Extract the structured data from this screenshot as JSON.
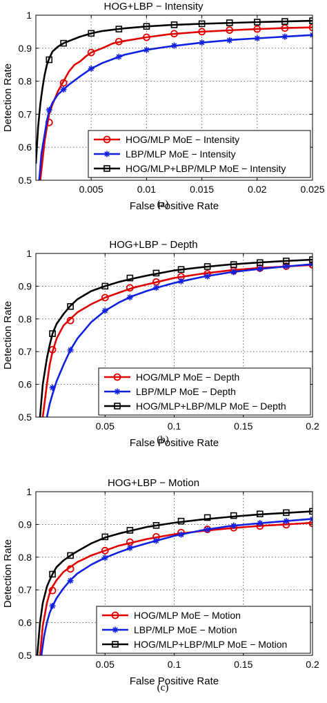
{
  "chart_data": [
    {
      "type": "line",
      "caption": "(a)",
      "title": "HOG+LBP − Intensity",
      "xlabel": "False Positive Rate",
      "ylabel": "Detection Rate",
      "xlim": [
        0,
        0.025
      ],
      "ylim": [
        0.5,
        1
      ],
      "xticks": [
        0,
        0.005,
        0.01,
        0.015,
        0.02,
        0.025
      ],
      "xtick_labels": [
        "",
        "0.005",
        "0.01",
        "0.015",
        "0.02",
        "0.025"
      ],
      "yticks": [
        0.5,
        0.6,
        0.7,
        0.8,
        0.9,
        1
      ],
      "ytick_labels": [
        "0.5",
        "0.6",
        "0.7",
        "0.8",
        "0.9",
        "1"
      ],
      "grid": true,
      "legend_position": "bottom-right",
      "series": [
        {
          "name": "HOG/MLP MoE − Intensity",
          "color": "#e00000",
          "marker": "circle",
          "x": [
            0.0004,
            0.0006,
            0.0008,
            0.001,
            0.0012,
            0.0015,
            0.002,
            0.0025,
            0.003,
            0.0035,
            0.004,
            0.0045,
            0.005,
            0.006,
            0.007,
            0.008,
            0.01,
            0.012,
            0.015,
            0.018,
            0.02,
            0.0225,
            0.025
          ],
          "y": [
            0.5,
            0.56,
            0.62,
            0.66,
            0.7,
            0.73,
            0.77,
            0.8,
            0.83,
            0.85,
            0.86,
            0.875,
            0.887,
            0.9,
            0.915,
            0.922,
            0.933,
            0.942,
            0.95,
            0.955,
            0.958,
            0.961,
            0.963
          ],
          "markers_x": [
            0.0012,
            0.0025,
            0.005,
            0.0075,
            0.01,
            0.0125,
            0.015,
            0.0175,
            0.02,
            0.0225,
            0.025
          ],
          "markers_y": [
            0.675,
            0.795,
            0.887,
            0.92,
            0.933,
            0.944,
            0.95,
            0.955,
            0.958,
            0.961,
            0.963
          ]
        },
        {
          "name": "LBP/MLP MoE − Intensity",
          "color": "#1020e0",
          "marker": "star",
          "x": [
            0.0003,
            0.0005,
            0.0008,
            0.001,
            0.0012,
            0.0015,
            0.002,
            0.0025,
            0.003,
            0.004,
            0.005,
            0.006,
            0.008,
            0.01,
            0.012,
            0.015,
            0.018,
            0.02,
            0.0225,
            0.025
          ],
          "y": [
            0.5,
            0.58,
            0.64,
            0.68,
            0.71,
            0.735,
            0.76,
            0.775,
            0.79,
            0.815,
            0.838,
            0.855,
            0.88,
            0.895,
            0.905,
            0.917,
            0.926,
            0.93,
            0.935,
            0.94
          ],
          "markers_x": [
            0.0012,
            0.0025,
            0.005,
            0.0075,
            0.01,
            0.0125,
            0.015,
            0.0175,
            0.02,
            0.0225,
            0.025
          ],
          "markers_y": [
            0.713,
            0.775,
            0.838,
            0.874,
            0.895,
            0.908,
            0.917,
            0.924,
            0.93,
            0.935,
            0.94
          ]
        },
        {
          "name": "HOG/MLP+LBP/MLP MoE − Intensity",
          "color": "#000000",
          "marker": "square",
          "x": [
            0.0,
            0.0002,
            0.0004,
            0.0006,
            0.0008,
            0.001,
            0.0012,
            0.0015,
            0.002,
            0.0025,
            0.003,
            0.004,
            0.005,
            0.006,
            0.008,
            0.01,
            0.012,
            0.015,
            0.018,
            0.02,
            0.0225,
            0.025
          ],
          "y": [
            0.55,
            0.66,
            0.73,
            0.78,
            0.82,
            0.85,
            0.868,
            0.89,
            0.905,
            0.915,
            0.922,
            0.935,
            0.945,
            0.952,
            0.96,
            0.966,
            0.97,
            0.974,
            0.977,
            0.979,
            0.981,
            0.983
          ],
          "markers_x": [
            0.0012,
            0.0025,
            0.005,
            0.0075,
            0.01,
            0.0125,
            0.015,
            0.0175,
            0.02,
            0.0225,
            0.025
          ],
          "markers_y": [
            0.865,
            0.915,
            0.945,
            0.958,
            0.966,
            0.971,
            0.974,
            0.977,
            0.979,
            0.981,
            0.983
          ]
        }
      ]
    },
    {
      "type": "line",
      "caption": "(b)",
      "title": "HOG+LBP − Depth",
      "xlabel": "False Positive Rate",
      "ylabel": "Detection Rate",
      "xlim": [
        0,
        0.2
      ],
      "ylim": [
        0.5,
        1
      ],
      "xticks": [
        0,
        0.05,
        0.1,
        0.15,
        0.2
      ],
      "xtick_labels": [
        "",
        "0.05",
        "0.1",
        "0.15",
        "0.2"
      ],
      "yticks": [
        0.5,
        0.6,
        0.7,
        0.8,
        0.9,
        1
      ],
      "ytick_labels": [
        "0.5",
        "0.6",
        "0.7",
        "0.8",
        "0.9",
        "1"
      ],
      "grid": true,
      "legend_position": "bottom-right",
      "series": [
        {
          "name": "HOG/MLP MoE − Depth",
          "color": "#e00000",
          "marker": "circle",
          "x": [
            0.005,
            0.008,
            0.01,
            0.012,
            0.015,
            0.02,
            0.025,
            0.03,
            0.04,
            0.05,
            0.06,
            0.07,
            0.08,
            0.09,
            0.1,
            0.12,
            0.14,
            0.16,
            0.18,
            0.2
          ],
          "y": [
            0.5,
            0.6,
            0.66,
            0.7,
            0.74,
            0.78,
            0.8,
            0.82,
            0.845,
            0.865,
            0.88,
            0.895,
            0.905,
            0.915,
            0.925,
            0.938,
            0.948,
            0.955,
            0.96,
            0.965
          ],
          "markers_x": [
            0.012,
            0.025,
            0.05,
            0.068,
            0.087,
            0.105,
            0.124,
            0.143,
            0.162,
            0.181,
            0.2
          ],
          "markers_y": [
            0.706,
            0.795,
            0.865,
            0.895,
            0.913,
            0.929,
            0.938,
            0.947,
            0.955,
            0.961,
            0.965
          ]
        },
        {
          "name": "LBP/MLP MoE − Depth",
          "color": "#1020e0",
          "marker": "star",
          "x": [
            0.008,
            0.01,
            0.012,
            0.015,
            0.02,
            0.025,
            0.03,
            0.04,
            0.05,
            0.06,
            0.07,
            0.08,
            0.09,
            0.1,
            0.12,
            0.14,
            0.16,
            0.18,
            0.2
          ],
          "y": [
            0.5,
            0.54,
            0.57,
            0.61,
            0.66,
            0.705,
            0.74,
            0.79,
            0.825,
            0.85,
            0.87,
            0.885,
            0.898,
            0.91,
            0.928,
            0.942,
            0.952,
            0.96,
            0.967
          ],
          "markers_x": [
            0.012,
            0.025,
            0.05,
            0.068,
            0.087,
            0.105,
            0.124,
            0.143,
            0.162,
            0.181,
            0.2
          ],
          "markers_y": [
            0.59,
            0.705,
            0.825,
            0.866,
            0.895,
            0.915,
            0.93,
            0.943,
            0.953,
            0.961,
            0.967
          ]
        },
        {
          "name": "HOG/MLP+LBP/MLP MoE − Depth",
          "color": "#000000",
          "marker": "square",
          "x": [
            0.003,
            0.005,
            0.008,
            0.01,
            0.012,
            0.015,
            0.02,
            0.025,
            0.03,
            0.04,
            0.05,
            0.06,
            0.07,
            0.08,
            0.1,
            0.12,
            0.14,
            0.16,
            0.18,
            0.2
          ],
          "y": [
            0.5,
            0.6,
            0.68,
            0.72,
            0.755,
            0.785,
            0.815,
            0.84,
            0.86,
            0.885,
            0.9,
            0.913,
            0.923,
            0.932,
            0.948,
            0.958,
            0.966,
            0.972,
            0.977,
            0.981
          ],
          "markers_x": [
            0.012,
            0.025,
            0.05,
            0.068,
            0.087,
            0.105,
            0.124,
            0.143,
            0.162,
            0.181,
            0.2
          ],
          "markers_y": [
            0.755,
            0.838,
            0.9,
            0.925,
            0.94,
            0.951,
            0.96,
            0.966,
            0.972,
            0.977,
            0.981
          ]
        }
      ]
    },
    {
      "type": "line",
      "caption": "(c)",
      "title": "HOG+LBP − Motion",
      "xlabel": "False Positive Rate",
      "ylabel": "Detection Rate",
      "xlim": [
        0,
        0.2
      ],
      "ylim": [
        0.5,
        1
      ],
      "xticks": [
        0,
        0.05,
        0.1,
        0.15,
        0.2
      ],
      "xtick_labels": [
        "",
        "0.05",
        "0.1",
        "0.15",
        "0.2"
      ],
      "yticks": [
        0.5,
        0.6,
        0.7,
        0.8,
        0.9,
        1
      ],
      "ytick_labels": [
        "0.5",
        "0.6",
        "0.7",
        "0.8",
        "0.9",
        "1"
      ],
      "grid": true,
      "legend_position": "bottom-right",
      "series": [
        {
          "name": "HOG/MLP MoE − Motion",
          "color": "#e00000",
          "marker": "circle",
          "x": [
            0.003,
            0.005,
            0.008,
            0.01,
            0.012,
            0.015,
            0.02,
            0.025,
            0.03,
            0.04,
            0.05,
            0.06,
            0.07,
            0.08,
            0.1,
            0.12,
            0.14,
            0.16,
            0.18,
            0.2
          ],
          "y": [
            0.5,
            0.59,
            0.66,
            0.69,
            0.71,
            0.73,
            0.755,
            0.77,
            0.785,
            0.805,
            0.82,
            0.835,
            0.845,
            0.855,
            0.87,
            0.88,
            0.888,
            0.895,
            0.9,
            0.905
          ],
          "markers_x": [
            0.012,
            0.025,
            0.05,
            0.068,
            0.087,
            0.105,
            0.124,
            0.143,
            0.162,
            0.181,
            0.2
          ],
          "markers_y": [
            0.698,
            0.764,
            0.82,
            0.846,
            0.862,
            0.875,
            0.885,
            0.89,
            0.895,
            0.899,
            0.903
          ]
        },
        {
          "name": "LBP/MLP MoE − Motion",
          "color": "#1020e0",
          "marker": "star",
          "x": [
            0.004,
            0.006,
            0.008,
            0.01,
            0.012,
            0.015,
            0.02,
            0.025,
            0.03,
            0.04,
            0.05,
            0.06,
            0.07,
            0.08,
            0.1,
            0.12,
            0.14,
            0.16,
            0.18,
            0.2
          ],
          "y": [
            0.5,
            0.56,
            0.6,
            0.63,
            0.65,
            0.675,
            0.705,
            0.73,
            0.75,
            0.777,
            0.798,
            0.815,
            0.83,
            0.842,
            0.865,
            0.882,
            0.895,
            0.903,
            0.91,
            0.917
          ],
          "markers_x": [
            0.012,
            0.025,
            0.05,
            0.068,
            0.087,
            0.105,
            0.124,
            0.143,
            0.162,
            0.181,
            0.2
          ],
          "markers_y": [
            0.651,
            0.728,
            0.798,
            0.828,
            0.85,
            0.869,
            0.884,
            0.896,
            0.904,
            0.91,
            0.916
          ]
        },
        {
          "name": "HOG/MLP+LBP/MLP MoE − Motion",
          "color": "#000000",
          "marker": "square",
          "x": [
            0.001,
            0.003,
            0.005,
            0.008,
            0.01,
            0.012,
            0.015,
            0.02,
            0.025,
            0.03,
            0.04,
            0.05,
            0.06,
            0.07,
            0.08,
            0.1,
            0.12,
            0.14,
            0.16,
            0.18,
            0.2
          ],
          "y": [
            0.5,
            0.6,
            0.66,
            0.71,
            0.73,
            0.748,
            0.77,
            0.79,
            0.805,
            0.818,
            0.842,
            0.86,
            0.872,
            0.882,
            0.892,
            0.905,
            0.915,
            0.923,
            0.93,
            0.935,
            0.94
          ],
          "markers_x": [
            0.012,
            0.025,
            0.05,
            0.068,
            0.087,
            0.105,
            0.124,
            0.143,
            0.162,
            0.181,
            0.2
          ],
          "markers_y": [
            0.748,
            0.805,
            0.862,
            0.882,
            0.897,
            0.91,
            0.921,
            0.927,
            0.932,
            0.936,
            0.94
          ]
        }
      ]
    }
  ]
}
